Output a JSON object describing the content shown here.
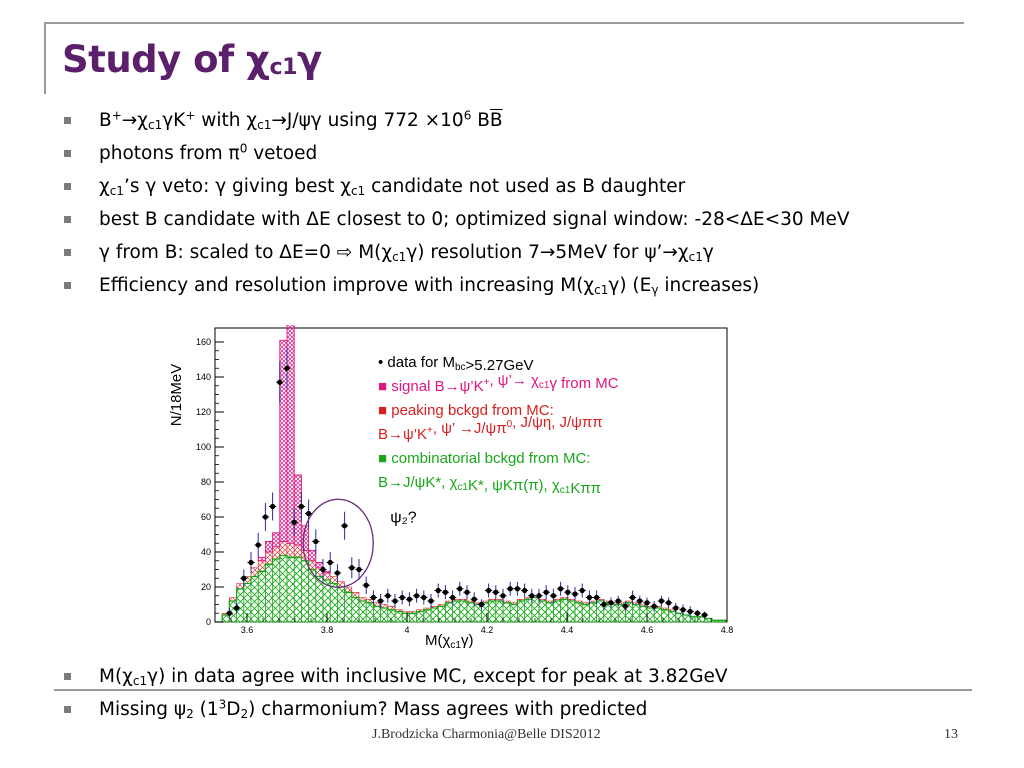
{
  "title": {
    "main": "Study of χ",
    "sub": "c1",
    "tail": "γ"
  },
  "bullets": [
    {
      "segs": [
        [
          "t",
          "B"
        ],
        [
          "sup",
          "+"
        ],
        [
          "t",
          "→χ"
        ],
        [
          "sub",
          "c1"
        ],
        [
          "t",
          "γK"
        ],
        [
          "sup",
          "+"
        ],
        [
          "t",
          " with χ"
        ],
        [
          "sub",
          "c1"
        ],
        [
          "t",
          "→J/ψγ using 772 ×10"
        ],
        [
          "sup",
          "6"
        ],
        [
          "t",
          " B"
        ],
        [
          "ol",
          "B"
        ]
      ]
    },
    {
      "segs": [
        [
          "t",
          "photons from π"
        ],
        [
          "sup",
          "0"
        ],
        [
          "t",
          " vetoed"
        ]
      ]
    },
    {
      "segs": [
        [
          "t",
          "χ"
        ],
        [
          "sub",
          "c1"
        ],
        [
          "t",
          "’s γ veto: γ giving best χ"
        ],
        [
          "sub",
          "c1"
        ],
        [
          "t",
          " candidate not used as B daughter"
        ]
      ]
    },
    {
      "segs": [
        [
          "t",
          "best B candidate with ΔE closest to 0; optimized signal window: -28<ΔE<30 MeV"
        ]
      ]
    },
    {
      "segs": [
        [
          "t",
          "γ from B: scaled to ΔE=0 ⇨ M(χ"
        ],
        [
          "sub",
          "c1"
        ],
        [
          "t",
          "γ) resolution 7→5MeV for ψ’→χ"
        ],
        [
          "sub",
          "c1"
        ],
        [
          "t",
          "γ"
        ]
      ]
    },
    {
      "segs": [
        [
          "t",
          "Efficiency and resolution improve with increasing M(χ"
        ],
        [
          "sub",
          "c1"
        ],
        [
          "t",
          "γ) (E"
        ],
        [
          "sub",
          "γ"
        ],
        [
          "t",
          " increases)"
        ]
      ]
    }
  ],
  "bottom_bullets": [
    {
      "segs": [
        [
          "t",
          "M(χ"
        ],
        [
          "sub",
          "c1"
        ],
        [
          "t",
          "γ) in data agree with inclusive MC,  except for peak at 3.82GeV"
        ]
      ]
    },
    {
      "segs": [
        [
          "t",
          "Missing ψ"
        ],
        [
          "sub",
          "2"
        ],
        [
          "t",
          " (1"
        ],
        [
          "sup",
          "3"
        ],
        [
          "t",
          "D"
        ],
        [
          "sub",
          "2"
        ],
        [
          "t",
          ") charmonium? Mass agrees with predicted"
        ]
      ]
    }
  ],
  "footer": {
    "text": "J.Brodzicka  Charmonia@Belle   DIS2012",
    "page": "13"
  },
  "colors": {
    "title": "#5b1f6b",
    "signal": "#e0157f",
    "peaking": "#d81e1e",
    "comb": "#1aa81a",
    "data": "#000000",
    "error_bar": "#2a2aa8",
    "circle": "#6b2a7b"
  },
  "chart_data": {
    "type": "histogram",
    "xlabel": "M(χc1γ)",
    "ylabel": "N/18MeV",
    "xlim": [
      3.52,
      4.8
    ],
    "ylim": [
      0,
      168
    ],
    "x_ticks": [
      "3.6",
      "3.8",
      "4",
      "4.2",
      "4.4",
      "4.6",
      "4.8"
    ],
    "y_ticks": [
      "0",
      "20",
      "40",
      "60",
      "80",
      "100",
      "120",
      "140",
      "160"
    ],
    "bin_width": 0.018,
    "bin_start": 3.52,
    "combinatorial": [
      0,
      4,
      12,
      19,
      22,
      26,
      29,
      33,
      36,
      38,
      37,
      37,
      35,
      30,
      26,
      24,
      22,
      20,
      17,
      14,
      12,
      11,
      9,
      8,
      7,
      6,
      5,
      5,
      6,
      7,
      8,
      9,
      11,
      12,
      12,
      11,
      10,
      11,
      12,
      12,
      11,
      10,
      12,
      13,
      14,
      12,
      11,
      12,
      13,
      12,
      11,
      10,
      11,
      12,
      11,
      10,
      10,
      11,
      10,
      9,
      8,
      8,
      7,
      6,
      5,
      4,
      3,
      3,
      2,
      1,
      1
    ],
    "peaking": [
      0,
      1,
      2,
      3,
      4,
      5,
      6,
      7,
      7,
      8,
      8,
      7,
      6,
      5,
      5,
      4,
      4,
      3,
      3,
      3,
      2,
      2,
      2,
      2,
      2,
      1,
      1,
      1,
      1,
      1,
      1,
      1,
      1,
      1,
      1,
      1,
      1,
      1,
      1,
      1,
      1,
      1,
      1,
      1,
      1,
      1,
      1,
      1,
      1,
      1,
      1,
      1,
      1,
      1,
      1,
      1,
      1,
      1,
      1,
      1,
      1,
      1,
      1,
      1,
      0,
      0,
      0,
      0,
      0,
      0,
      0
    ],
    "signal": [
      0,
      0,
      0,
      0,
      0,
      0,
      2,
      6,
      8,
      115,
      130,
      40,
      14,
      6,
      3,
      1,
      0,
      0,
      0,
      0,
      0,
      0,
      0,
      0,
      0,
      0,
      0,
      0,
      0,
      0,
      0,
      0,
      0,
      0,
      0,
      0,
      0,
      0,
      0,
      0,
      0,
      0,
      0,
      0,
      0,
      0,
      0,
      0,
      0,
      0,
      0,
      0,
      0,
      0,
      0,
      0,
      0,
      0,
      0,
      0,
      0,
      0,
      0,
      0,
      0,
      0,
      0,
      0,
      0,
      0,
      0
    ],
    "data": [
      [
        3.556,
        5,
        3
      ],
      [
        3.574,
        8,
        3
      ],
      [
        3.592,
        25,
        5
      ],
      [
        3.61,
        34,
        6
      ],
      [
        3.628,
        44,
        7
      ],
      [
        3.646,
        60,
        8
      ],
      [
        3.664,
        66,
        8
      ],
      [
        3.682,
        137,
        12
      ],
      [
        3.7,
        145,
        12
      ],
      [
        3.718,
        57,
        8
      ],
      [
        3.736,
        66,
        8
      ],
      [
        3.754,
        62,
        8
      ],
      [
        3.772,
        46,
        7
      ],
      [
        3.79,
        30,
        6
      ],
      [
        3.808,
        34,
        6
      ],
      [
        3.826,
        28,
        5
      ],
      [
        3.844,
        55,
        8
      ],
      [
        3.862,
        31,
        6
      ],
      [
        3.88,
        30,
        6
      ],
      [
        3.898,
        21,
        5
      ],
      [
        3.916,
        14,
        4
      ],
      [
        3.934,
        12,
        4
      ],
      [
        3.952,
        15,
        4
      ],
      [
        3.97,
        12,
        4
      ],
      [
        3.988,
        14,
        4
      ],
      [
        4.006,
        13,
        4
      ],
      [
        4.024,
        15,
        4
      ],
      [
        4.042,
        14,
        4
      ],
      [
        4.06,
        12,
        4
      ],
      [
        4.078,
        18,
        4
      ],
      [
        4.096,
        17,
        4
      ],
      [
        4.114,
        14,
        4
      ],
      [
        4.132,
        19,
        4
      ],
      [
        4.15,
        17,
        4
      ],
      [
        4.168,
        13,
        4
      ],
      [
        4.186,
        10,
        3
      ],
      [
        4.204,
        18,
        4
      ],
      [
        4.222,
        17,
        4
      ],
      [
        4.24,
        15,
        4
      ],
      [
        4.258,
        19,
        4
      ],
      [
        4.276,
        19,
        4
      ],
      [
        4.294,
        18,
        4
      ],
      [
        4.312,
        15,
        4
      ],
      [
        4.33,
        15,
        4
      ],
      [
        4.348,
        17,
        4
      ],
      [
        4.366,
        15,
        4
      ],
      [
        4.384,
        19,
        4
      ],
      [
        4.402,
        17,
        4
      ],
      [
        4.42,
        16,
        4
      ],
      [
        4.438,
        18,
        4
      ],
      [
        4.456,
        14,
        4
      ],
      [
        4.474,
        14,
        4
      ],
      [
        4.492,
        10,
        3
      ],
      [
        4.51,
        11,
        3
      ],
      [
        4.528,
        12,
        3
      ],
      [
        4.546,
        9,
        3
      ],
      [
        4.564,
        14,
        4
      ],
      [
        4.582,
        12,
        3
      ],
      [
        4.6,
        11,
        3
      ],
      [
        4.618,
        9,
        3
      ],
      [
        4.636,
        12,
        3
      ],
      [
        4.654,
        11,
        3
      ],
      [
        4.672,
        8,
        3
      ],
      [
        4.69,
        7,
        3
      ],
      [
        4.708,
        6,
        3
      ],
      [
        4.726,
        5,
        2
      ],
      [
        4.744,
        4,
        2
      ]
    ],
    "legend": [
      {
        "key": "data",
        "html": [
          [
            "t",
            "• data for M"
          ],
          [
            "sub",
            "bc"
          ],
          [
            "t",
            ">5.27GeV"
          ]
        ]
      },
      {
        "key": "signal",
        "html": [
          [
            "t",
            "■ signal B→ψ’K"
          ],
          [
            "sup",
            "+"
          ],
          [
            "t",
            ", ψ’→ χ"
          ],
          [
            "sub",
            "c1"
          ],
          [
            "t",
            "γ from MC"
          ]
        ]
      },
      {
        "key": "peaking",
        "html": [
          [
            "t",
            "■ peaking bckgd from MC:"
          ]
        ]
      },
      {
        "key": "peaking",
        "html": [
          [
            "t",
            "   B→ψ’K"
          ],
          [
            "sup",
            "+"
          ],
          [
            "t",
            ", ψ’ →J/ψπ"
          ],
          [
            "sup",
            "0"
          ],
          [
            "t",
            ", J/ψη, J/ψππ"
          ]
        ]
      },
      {
        "key": "comb",
        "html": [
          [
            "t",
            "■ combinatorial bckgd from MC:"
          ]
        ]
      },
      {
        "key": "comb",
        "html": [
          [
            "t",
            "   B→J/ψK*, χ"
          ],
          [
            "sub",
            "c1"
          ],
          [
            "t",
            "K*, ψKπ(π), χ"
          ],
          [
            "sub",
            "c1"
          ],
          [
            "t",
            "Kππ"
          ]
        ]
      }
    ],
    "annotation": "ψ₂?"
  }
}
